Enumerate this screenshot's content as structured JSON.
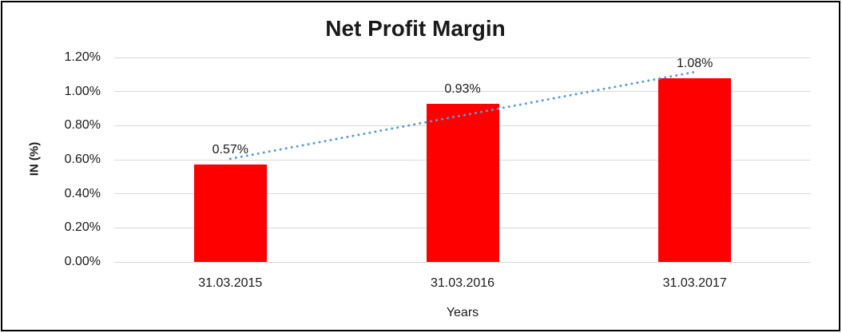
{
  "chart_data": {
    "type": "bar",
    "title": "Net Profit Margin",
    "xlabel": "Years",
    "ylabel": "IN (%)",
    "categories": [
      "31.03.2015",
      "31.03.2016",
      "31.03.2017"
    ],
    "values": [
      0.57,
      0.93,
      1.08
    ],
    "data_labels": [
      "0.57%",
      "0.93%",
      "1.08%"
    ],
    "y_ticks": [
      {
        "value": 0.0,
        "label": "0.00%"
      },
      {
        "value": 0.2,
        "label": "0.20%"
      },
      {
        "value": 0.4,
        "label": "0.40%"
      },
      {
        "value": 0.6,
        "label": "0.60%"
      },
      {
        "value": 0.8,
        "label": "0.80%"
      },
      {
        "value": 1.0,
        "label": "1.00%"
      },
      {
        "value": 1.2,
        "label": "1.20%"
      }
    ],
    "ylim": [
      0,
      1.2
    ],
    "grid": "horizontal",
    "legend": "none",
    "colors": {
      "bar": "#FF0000",
      "trendline": "#5B9BD5",
      "gridline": "#D9D9D9",
      "text": "#1a1a1a",
      "frame_border": "#000000",
      "background": "#FFFFFF"
    },
    "trendline": {
      "type": "linear",
      "style": "dotted"
    }
  }
}
